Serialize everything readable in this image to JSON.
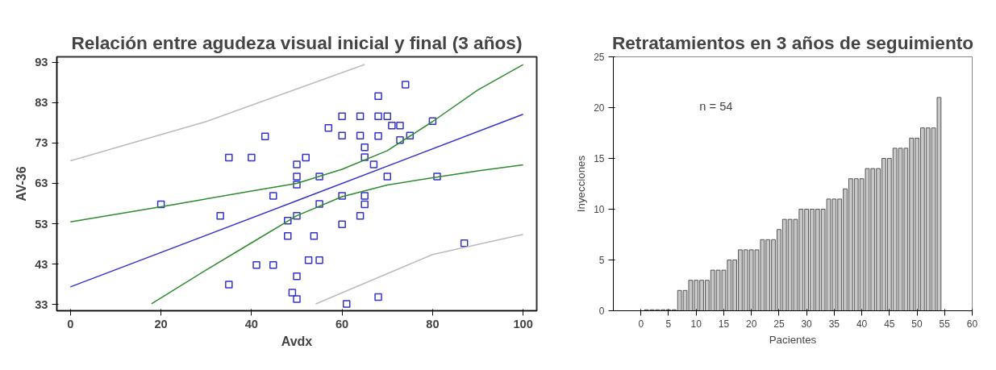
{
  "chart_data": [
    {
      "type": "scatter",
      "title": "Relación entre agudeza visual inicial y final (3 años)",
      "xlabel": "Avdx",
      "ylabel": "AV-36",
      "xlim": [
        -3,
        103
      ],
      "ylim": [
        31.5,
        94.3
      ],
      "xticks": [
        0,
        20,
        40,
        60,
        80,
        100
      ],
      "yticks": [
        33,
        43,
        53,
        63,
        73,
        83,
        93
      ],
      "grid": false,
      "series": [
        {
          "type": "scatter",
          "marker": "square",
          "color": "#3333cc",
          "x": [
            20,
            33.1,
            35,
            35,
            40,
            43,
            44.8,
            41.1,
            44.8,
            48,
            48,
            49,
            50,
            50,
            50,
            50,
            50,
            50,
            52,
            52.6,
            53.8,
            55,
            55,
            55,
            57,
            60,
            60,
            60,
            60,
            61,
            64,
            64,
            64,
            65,
            65,
            65,
            65,
            67,
            68,
            68,
            68,
            68,
            70,
            70,
            71,
            72.8,
            72.8,
            75,
            74,
            80,
            81,
            87
          ],
          "values": [
            57.8,
            55,
            69.4,
            38,
            69.4,
            74.6,
            59.9,
            42.8,
            42.8,
            53.8,
            50,
            36,
            34.4,
            40,
            55,
            62.7,
            64.7,
            67.7,
            69.4,
            44,
            50,
            44,
            57.9,
            64.7,
            76.7,
            79.6,
            74.8,
            59.9,
            52.9,
            33.2,
            79.6,
            74.8,
            55,
            71.9,
            69.5,
            59.9,
            57.8,
            67.7,
            84.6,
            79.6,
            74.7,
            34.9,
            79.6,
            64.7,
            77.3,
            77.3,
            73.7,
            74.8,
            87.4,
            78.4,
            64.7,
            48.2
          ]
        },
        {
          "type": "line",
          "color": "#3333cc",
          "x": [
            0,
            50,
            100
          ],
          "values": [
            37.4,
            58.7,
            80.1
          ]
        },
        {
          "type": "line",
          "color": "#2e8b2e",
          "x": [
            0,
            20,
            40,
            50,
            60,
            70,
            80,
            90,
            100
          ],
          "values": [
            53.5,
            57.2,
            61.1,
            63,
            66.5,
            71.1,
            78.3,
            86.1,
            92.4
          ]
        },
        {
          "type": "line",
          "color": "#2e8b2e",
          "x": [
            17.9,
            30,
            40,
            50,
            60,
            70,
            80,
            90,
            100
          ],
          "values": [
            33.2,
            41.6,
            48.3,
            55,
            59.7,
            62.6,
            64.4,
            66.1,
            67.6
          ]
        },
        {
          "type": "line",
          "color": "#bbbbbb",
          "x": [
            0,
            30,
            65
          ],
          "values": [
            68.6,
            78.3,
            92.4
          ]
        },
        {
          "type": "line",
          "color": "#bbbbbb",
          "x": [
            54.2,
            80,
            100
          ],
          "values": [
            33.2,
            45.4,
            50.4
          ]
        }
      ]
    },
    {
      "type": "bar",
      "title": "Retratamientos en 3 años de seguimiento",
      "xlabel": "Pacientes",
      "ylabel": "Inyecciones",
      "xlim": [
        -5,
        60
      ],
      "ylim": [
        0,
        25
      ],
      "xticks": [
        0,
        5,
        10,
        15,
        20,
        25,
        30,
        35,
        40,
        45,
        50,
        55,
        60
      ],
      "yticks": [
        0,
        5,
        10,
        15,
        20,
        25
      ],
      "grid": false,
      "annotations": [
        "n = 54"
      ],
      "series": [
        {
          "color": "#c8c8c8",
          "x": [
            1,
            2,
            3,
            4,
            5,
            6,
            7,
            8,
            9,
            10,
            11,
            12,
            13,
            14,
            15,
            16,
            17,
            18,
            19,
            20,
            21,
            22,
            23,
            24,
            25,
            26,
            27,
            28,
            29,
            30,
            31,
            32,
            33,
            34,
            35,
            36,
            37,
            38,
            39,
            40,
            41,
            42,
            43,
            44,
            45,
            46,
            47,
            48,
            49,
            50,
            51,
            52,
            53,
            54
          ],
          "values": [
            0.1,
            0.1,
            0.1,
            0.1,
            0.1,
            0.1,
            2,
            2,
            3,
            3,
            3,
            3,
            4,
            4,
            4,
            5,
            5,
            6,
            6,
            6,
            6,
            7,
            7,
            7,
            8,
            9,
            9,
            9,
            10,
            10,
            10,
            10,
            10,
            11,
            11,
            11,
            12,
            13,
            13,
            13,
            14,
            14,
            14,
            15,
            15,
            16,
            16,
            16,
            17,
            17,
            18,
            18,
            18,
            21
          ]
        }
      ]
    }
  ]
}
